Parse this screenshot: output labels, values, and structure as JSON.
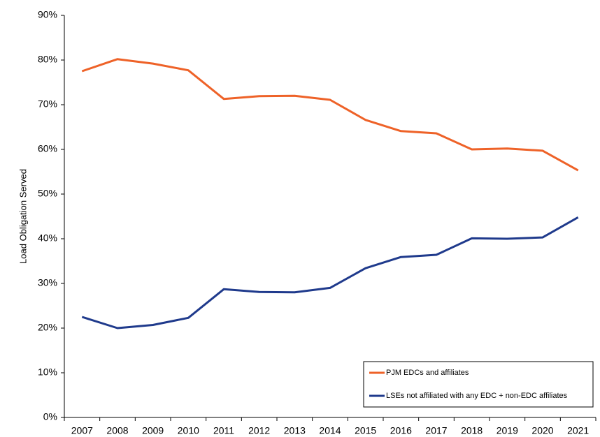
{
  "chart_data": {
    "type": "line",
    "y_label": "Load Obligation Served",
    "categories": [
      "2007",
      "2008",
      "2009",
      "2010",
      "2011",
      "2012",
      "2013",
      "2014",
      "2015",
      "2016",
      "2017",
      "2018",
      "2019",
      "2020",
      "2021"
    ],
    "series": [
      {
        "name": "PJM EDCs and affiliates",
        "color": "#ee6228",
        "values": [
          77.5,
          80.2,
          79.2,
          77.7,
          71.3,
          71.9,
          72.0,
          71.1,
          66.6,
          64.1,
          63.6,
          60.0,
          60.2,
          59.7,
          55.3
        ]
      },
      {
        "name": "LSEs not affiliated with any EDC + non-EDC affiliates",
        "color": "#1f3a8c",
        "values": [
          22.5,
          20.0,
          20.7,
          22.3,
          28.7,
          28.1,
          28.0,
          29.0,
          33.4,
          35.9,
          36.4,
          40.1,
          40.0,
          40.3,
          44.8
        ]
      }
    ],
    "ylim": [
      0,
      90
    ],
    "yticks": [
      {
        "value": 0,
        "label": "0%"
      },
      {
        "value": 10,
        "label": "10%"
      },
      {
        "value": 20,
        "label": "20%"
      },
      {
        "value": 30,
        "label": "30%"
      },
      {
        "value": 40,
        "label": "40%"
      },
      {
        "value": 50,
        "label": "50%"
      },
      {
        "value": 60,
        "label": "60%"
      },
      {
        "value": 70,
        "label": "70%"
      },
      {
        "value": 80,
        "label": "80%"
      },
      {
        "value": 90,
        "label": "90%"
      }
    ],
    "legend": "lower right",
    "grid": false
  }
}
